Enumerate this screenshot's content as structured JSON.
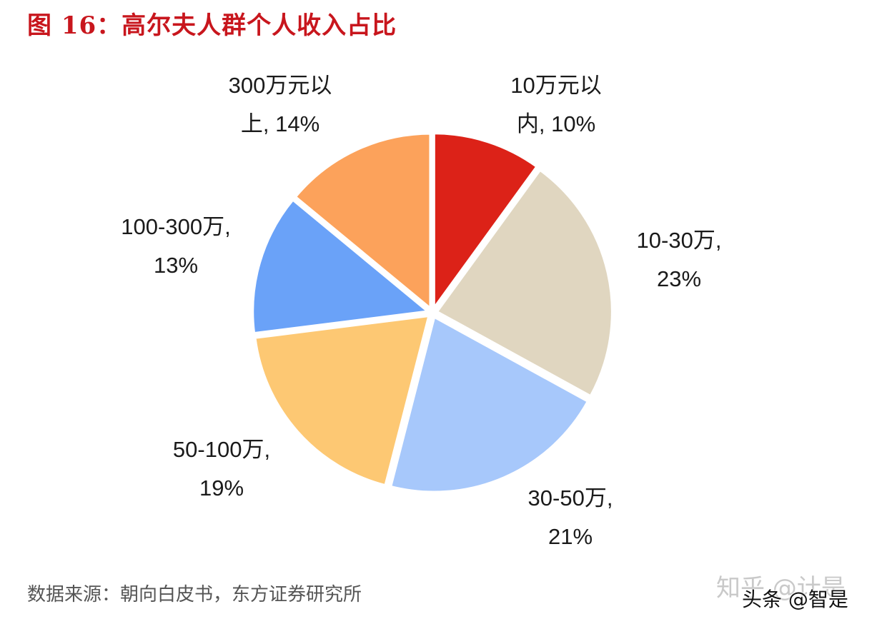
{
  "title": "图 16：高尔夫人群个人收入占比",
  "source": "数据来源：朝向白皮书，东方证券研究所",
  "watermarks": {
    "zhihu": "知乎 @计是",
    "toutiao": "头条 @智是"
  },
  "chart_data": {
    "type": "pie",
    "title": "图 16：高尔夫人群个人收入占比",
    "slices": [
      {
        "name": "10万元以内",
        "value": 10,
        "label_lines": [
          "10万元以",
          "内, 10%"
        ],
        "color": "#dc2218"
      },
      {
        "name": "10-30万",
        "value": 23,
        "label_lines": [
          "10-30万,",
          "23%"
        ],
        "color": "#e0d6c0"
      },
      {
        "name": "30-50万",
        "value": 21,
        "label_lines": [
          "30-50万,",
          "21%"
        ],
        "color": "#a7c8fb"
      },
      {
        "name": "50-100万",
        "value": 19,
        "label_lines": [
          "50-100万,",
          "19%"
        ],
        "color": "#fdc873"
      },
      {
        "name": "100-300万",
        "value": 13,
        "label_lines": [
          "100-300万,",
          "13%"
        ],
        "color": "#6aa2f8"
      },
      {
        "name": "300万元以上",
        "value": 14,
        "label_lines": [
          "300万元以",
          "上, 14%"
        ],
        "color": "#fca25b"
      }
    ],
    "start_angle_deg": 0,
    "direction": "clockwise",
    "legend": "none"
  }
}
